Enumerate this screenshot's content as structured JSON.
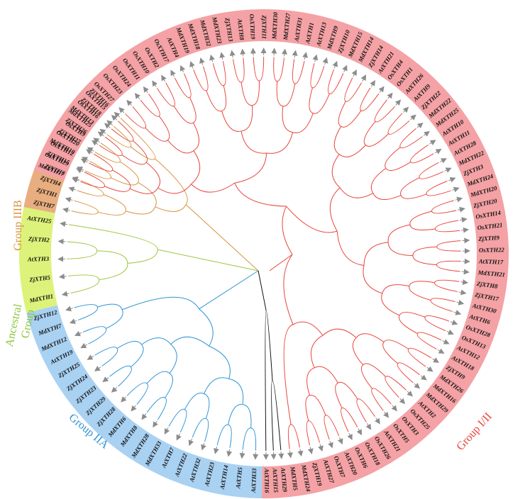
{
  "colors": {
    "groupI_II_band": "#f4a2a5",
    "groupIIIB_band": "#e8ae7f",
    "ancestral_band": "#ddf27a",
    "groupIIA_band": "#a9d1f2",
    "groupI_II_line": "#e8463d",
    "groupIIIB_line": "#d9923c",
    "ancestral_line": "#9cc63a",
    "groupIIA_line": "#2f95d5",
    "unassigned_line": "#111111",
    "arrow": "#8c8c8c",
    "groupI_II_label": "#e8463d",
    "groupIIIB_label": "#d9923c",
    "ancestral_label": "#8cc63f",
    "groupIIA_label": "#2f95d5"
  },
  "group_labels": {
    "group_I_II": "Group I/II",
    "group_IIIB": "Group IIIB",
    "ancestral_line1": "Ancestral",
    "ancestral_line2": "Group",
    "group_IIA": "Group IIA"
  },
  "clades": {
    "group_IIIB": [
      "ZjXTH7",
      "ZjXTH1",
      "ZjXTH4",
      "ZjXTH6",
      "ZjXTH15",
      "MdXTH10",
      "ZjXTH27",
      "ZjXTH26",
      "MdXTH13",
      "ZjXTH18",
      "ZjXTH16"
    ],
    "ancestral": [
      "MdXTH1",
      "ZjXTH5",
      "AtXTH3",
      "ZjXTH2",
      "AtXTH25"
    ],
    "group_IIA": [
      "AtXTH33",
      "AtXTH5",
      "AtXTH14",
      "AtXTH23",
      "AtXTH32",
      "AtXTH22",
      "AtXTH7",
      "MdXTH33",
      "MdXTH28",
      "MdXTH8",
      "MdXTH6",
      "ZjXTH28",
      "ZjXTH29",
      "ZjXTH23",
      "ZjXTH24",
      "ZjXTH25",
      "AtXTH19",
      "MdXTH12",
      "MdXTH7",
      "ZjXTH12"
    ],
    "unassigned": [
      "AtXTH29",
      "AtXTH15",
      "AtXTH16"
    ],
    "group_I_II": [
      "MdXTH17",
      "OsXTH29",
      "OsXTH12",
      "OsXTH20",
      "OsXTH9",
      "MdXTH25",
      "OsXTH16",
      "OsXTH15",
      "OsXTH27",
      "OsXTH23",
      "OsXTH24",
      "OsXTH11",
      "OsXTH10",
      "OsXTH2",
      "OsXTH17",
      "AtXTH4",
      "MdXTH19",
      "MdXTH18",
      "MdXTH32",
      "MdXTH23",
      "ZjXTH13",
      "AtXTH8",
      "OsXTH19",
      "ZjXTH11",
      "MdXTH30",
      "MdXTH27",
      "AtXTH31",
      "AtXTH1",
      "AtXTH13",
      "MdXTH9",
      "ZjXTH10",
      "MdXTH15",
      "MdXTH14",
      "ZjXTH14",
      "AtXTH21",
      "OsXTH4",
      "OsXTH1",
      "AtXTH26",
      "AtXTH9",
      "ZjXTH22",
      "MdXTH22",
      "MdXTH25",
      "AtXTH10",
      "AtXTH11",
      "AtXTH28",
      "MdXTH22",
      "ZjXTH3",
      "MdXTH24",
      "MdXTH20",
      "ZjXTH20",
      "OsXTH14",
      "OsXTH21",
      "ZjXTH9",
      "OsXTH22",
      "AtXTH17",
      "MdXTH21",
      "ZjXTH8",
      "ZjXTH17",
      "AtXTH30",
      "AtXTH6",
      "OsXTH28",
      "OsXTH13",
      "AtXTH12",
      "AtXTH18",
      "ZjXTH9",
      "MdXTH26",
      "MdXTH16",
      "MdXTH29",
      "AtXTH2",
      "OsXTH25",
      "OsXTH3",
      "OsXTH5",
      "AtXTH21",
      "OsXTH26",
      "OsXTH18",
      "OsXTH6",
      "AtXTH20",
      "OsXTH7",
      "AtXTH27",
      "ZjXTH19",
      "MdXTH24",
      "MdXTH5"
    ]
  }
}
